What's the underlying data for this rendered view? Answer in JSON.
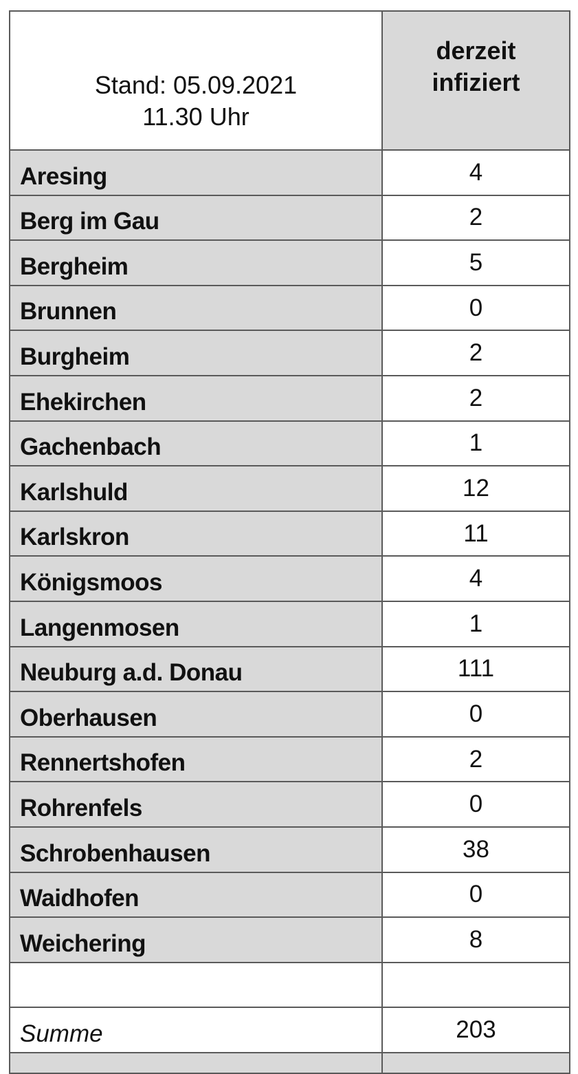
{
  "header": {
    "stand_line1": "Stand: 05.09.2021",
    "stand_line2": "11.30 Uhr",
    "column_line1": "derzeit",
    "column_line2": "infiziert"
  },
  "rows": [
    {
      "name": "Aresing",
      "value": "4"
    },
    {
      "name": "Berg im Gau",
      "value": "2"
    },
    {
      "name": "Bergheim",
      "value": "5"
    },
    {
      "name": "Brunnen",
      "value": "0"
    },
    {
      "name": "Burgheim",
      "value": "2"
    },
    {
      "name": "Ehekirchen",
      "value": "2"
    },
    {
      "name": "Gachenbach",
      "value": "1"
    },
    {
      "name": "Karlshuld",
      "value": "12"
    },
    {
      "name": "Karlskron",
      "value": "11"
    },
    {
      "name": "Königsmoos",
      "value": "4"
    },
    {
      "name": "Langenmosen",
      "value": "1"
    },
    {
      "name": "Neuburg a.d. Donau",
      "value": "111"
    },
    {
      "name": "Oberhausen",
      "value": "0"
    },
    {
      "name": "Rennertshofen",
      "value": "2"
    },
    {
      "name": "Rohrenfels",
      "value": "0"
    },
    {
      "name": "Schrobenhausen",
      "value": "38"
    },
    {
      "name": "Waidhofen",
      "value": "0"
    },
    {
      "name": "Weichering",
      "value": "8"
    }
  ],
  "total": {
    "label": "Summe",
    "value": "203"
  },
  "colors": {
    "label_fill": "#d9d9d9",
    "border": "#5a5a5a"
  }
}
